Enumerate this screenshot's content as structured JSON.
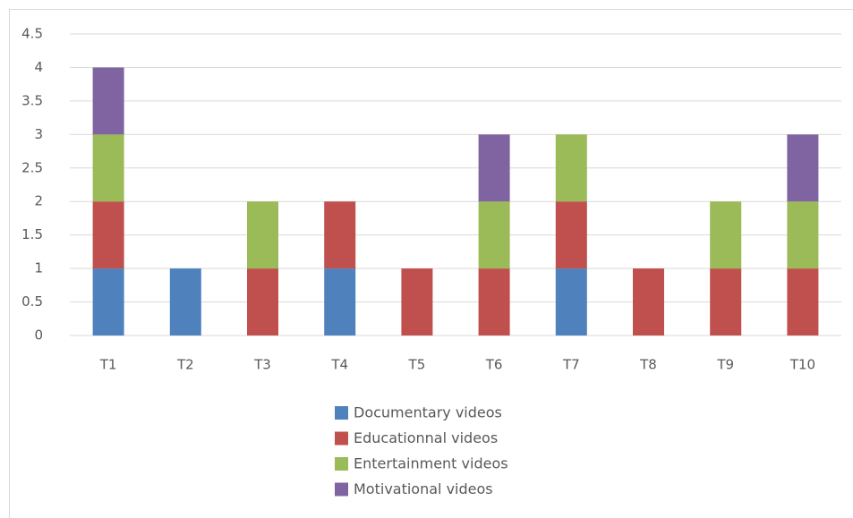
{
  "chart_data": {
    "type": "stacked_bar",
    "categories": [
      "T1",
      "T2",
      "T3",
      "T4",
      "T5",
      "T6",
      "T7",
      "T8",
      "T9",
      "T10"
    ],
    "series": [
      {
        "name": "Documentary videos",
        "color": "#4f81bd",
        "values": [
          1,
          1,
          0,
          1,
          0,
          0,
          1,
          0,
          0,
          0
        ]
      },
      {
        "name": "Educationnal videos",
        "color": "#c0504d",
        "values": [
          1,
          0,
          1,
          1,
          1,
          1,
          1,
          1,
          1,
          1
        ]
      },
      {
        "name": "Entertainment videos",
        "color": "#9bbb59",
        "values": [
          1,
          0,
          1,
          0,
          0,
          1,
          1,
          0,
          1,
          1
        ]
      },
      {
        "name": "Motivational videos",
        "color": "#8064a2",
        "values": [
          1,
          0,
          0,
          0,
          0,
          1,
          0,
          0,
          0,
          1
        ]
      }
    ],
    "ylim": [
      0,
      4.5
    ],
    "yticks": [
      0,
      0.5,
      1,
      1.5,
      2,
      2.5,
      3,
      3.5,
      4,
      4.5
    ],
    "grid": true,
    "legend": "bottom"
  }
}
